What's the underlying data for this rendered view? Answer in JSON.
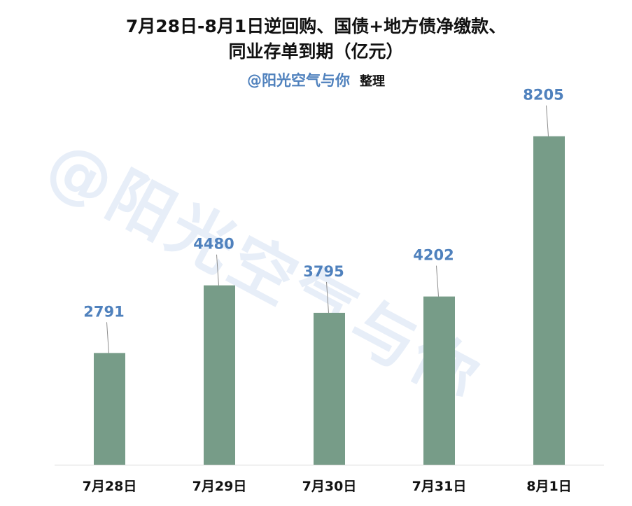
{
  "title_line1": "7月28日-8月1日逆回购、国债+地方债净缴款、",
  "title_line2": "同业存单到期（亿元）",
  "subtitle_author": "@阳光空气与你",
  "subtitle_note": "整理",
  "watermark": "@阳光空气与你",
  "colors": {
    "bar": "#779c88",
    "label": "#4f81bd",
    "axis": "#d9d9d9",
    "leader": "#8c8c8c",
    "watermark": "#e7eef8"
  },
  "chart_data": {
    "type": "bar",
    "categories": [
      "7月28日",
      "7月29日",
      "7月30日",
      "7月31日",
      "8月1日"
    ],
    "values": [
      2791,
      4480,
      3795,
      4202,
      8205
    ],
    "title": "7月28日-8月1日逆回购、国债+地方债净缴款、同业存单到期（亿元）",
    "xlabel": "",
    "ylabel": "",
    "ylim": [
      0,
      10000
    ],
    "grid": false,
    "legend": "none",
    "data_labels": true
  }
}
